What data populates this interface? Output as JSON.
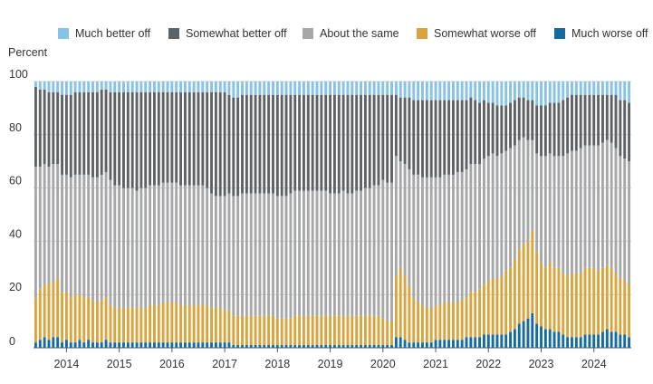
{
  "chart_data": {
    "type": "bar",
    "stacked": true,
    "ylabel": "Percent",
    "ylim": [
      0,
      100
    ],
    "y_ticks": [
      0,
      20,
      40,
      60,
      80,
      100
    ],
    "x_tick_labels": [
      "2014",
      "2015",
      "2016",
      "2017",
      "2018",
      "2019",
      "2020",
      "2021",
      "2022",
      "2023",
      "2024"
    ],
    "x_range": [
      "2013-06",
      "2024-04"
    ],
    "grid": true,
    "legend_position": "top",
    "series": [
      {
        "name": "Much worse off",
        "color": "#156A9E",
        "values": [
          2,
          3,
          4,
          3,
          4,
          4,
          2,
          3,
          2,
          2,
          3,
          2,
          3,
          2,
          2,
          2,
          3,
          2,
          2,
          2,
          2,
          2,
          2,
          2,
          2,
          2,
          2,
          2,
          2,
          2,
          2,
          2,
          2,
          2,
          2,
          2,
          2,
          2,
          2,
          2,
          2,
          2,
          2,
          2,
          2,
          1,
          1,
          1,
          1,
          1,
          1,
          1,
          1,
          1,
          1,
          1,
          1,
          1,
          1,
          1,
          1,
          1,
          1,
          1,
          1,
          1,
          1,
          1,
          1,
          1,
          1,
          1,
          1,
          1,
          1,
          1,
          1,
          1,
          1,
          1,
          1,
          1,
          4,
          4,
          3,
          2,
          2,
          2,
          2,
          2,
          2,
          3,
          3,
          3,
          3,
          3,
          3,
          3,
          4,
          4,
          4,
          4,
          5,
          5,
          5,
          5,
          5,
          5,
          6,
          7,
          9,
          10,
          11,
          13,
          9,
          8,
          7,
          7,
          6,
          6,
          5,
          4,
          4,
          4,
          4,
          5,
          5,
          5,
          5,
          6,
          7,
          6,
          6,
          5,
          5,
          4
        ]
      },
      {
        "name": "Somewhat worse off",
        "color": "#D9A43D",
        "values": [
          17,
          19,
          20,
          21,
          21,
          22,
          19,
          18,
          17,
          18,
          17,
          17,
          16,
          16,
          15,
          16,
          16,
          14,
          13,
          13,
          13,
          13,
          13,
          13,
          13,
          13,
          14,
          14,
          14,
          15,
          15,
          15,
          15,
          14,
          14,
          14,
          14,
          14,
          14,
          14,
          13,
          13,
          13,
          12,
          12,
          11,
          11,
          11,
          11,
          11,
          11,
          11,
          11,
          11,
          11,
          10,
          10,
          10,
          10,
          11,
          11,
          11,
          11,
          11,
          11,
          11,
          11,
          11,
          11,
          11,
          11,
          11,
          11,
          11,
          11,
          11,
          11,
          11,
          11,
          10,
          9,
          9,
          23,
          26,
          24,
          21,
          17,
          15,
          14,
          13,
          13,
          13,
          13,
          14,
          14,
          14,
          14,
          15,
          15,
          17,
          17,
          18,
          19,
          20,
          21,
          21,
          22,
          24,
          24,
          26,
          28,
          29,
          29,
          31,
          27,
          24,
          23,
          25,
          24,
          24,
          23,
          23,
          24,
          24,
          24,
          25,
          25,
          25,
          24,
          24,
          24,
          24,
          22,
          21,
          20,
          20
        ]
      },
      {
        "name": "About the same",
        "color": "#A6A7A9",
        "values": [
          49,
          46,
          45,
          44,
          44,
          43,
          44,
          44,
          45,
          45,
          45,
          46,
          46,
          46,
          47,
          47,
          47,
          47,
          46,
          46,
          45,
          45,
          45,
          44,
          45,
          45,
          45,
          45,
          45,
          45,
          45,
          45,
          45,
          45,
          45,
          45,
          45,
          45,
          45,
          44,
          43,
          42,
          42,
          43,
          44,
          45,
          45,
          46,
          46,
          46,
          46,
          46,
          46,
          46,
          46,
          46,
          46,
          46,
          47,
          47,
          47,
          47,
          47,
          47,
          47,
          47,
          47,
          46,
          46,
          46,
          47,
          46,
          46,
          47,
          47,
          48,
          48,
          49,
          49,
          52,
          52,
          52,
          45,
          40,
          42,
          44,
          46,
          48,
          48,
          49,
          49,
          48,
          48,
          48,
          48,
          48,
          49,
          48,
          48,
          48,
          48,
          47,
          47,
          47,
          47,
          46,
          46,
          45,
          45,
          43,
          41,
          40,
          38,
          34,
          37,
          40,
          42,
          41,
          42,
          42,
          44,
          46,
          46,
          46,
          47,
          46,
          46,
          46,
          47,
          47,
          47,
          47,
          47,
          46,
          46,
          46
        ]
      },
      {
        "name": "Somewhat better off",
        "color": "#5E6166",
        "values": [
          30,
          29,
          28,
          28,
          27,
          27,
          30,
          30,
          31,
          31,
          31,
          31,
          31,
          32,
          32,
          32,
          31,
          33,
          35,
          35,
          36,
          36,
          36,
          37,
          36,
          36,
          35,
          35,
          35,
          34,
          34,
          34,
          34,
          35,
          35,
          35,
          35,
          35,
          35,
          36,
          38,
          39,
          39,
          39,
          37,
          37,
          37,
          37,
          37,
          37,
          37,
          37,
          37,
          37,
          37,
          38,
          38,
          38,
          37,
          36,
          36,
          36,
          36,
          36,
          36,
          36,
          36,
          37,
          37,
          37,
          36,
          37,
          37,
          36,
          36,
          35,
          35,
          34,
          34,
          32,
          33,
          33,
          23,
          24,
          25,
          27,
          28,
          28,
          29,
          29,
          29,
          29,
          29,
          28,
          28,
          28,
          27,
          27,
          26,
          25,
          24,
          23,
          22,
          20,
          19,
          19,
          18,
          17,
          17,
          17,
          16,
          15,
          15,
          15,
          18,
          19,
          19,
          19,
          20,
          20,
          21,
          21,
          21,
          21,
          20,
          19,
          19,
          19,
          19,
          18,
          17,
          18,
          20,
          21,
          22,
          22
        ]
      },
      {
        "name": "Much better off",
        "color": "#87C3E6",
        "values": [
          2,
          3,
          3,
          4,
          4,
          4,
          5,
          5,
          5,
          4,
          4,
          4,
          4,
          4,
          4,
          3,
          3,
          4,
          4,
          4,
          4,
          4,
          4,
          4,
          4,
          4,
          4,
          4,
          4,
          4,
          4,
          4,
          4,
          4,
          4,
          4,
          4,
          4,
          4,
          4,
          4,
          4,
          4,
          4,
          5,
          6,
          6,
          5,
          5,
          5,
          5,
          5,
          5,
          5,
          5,
          5,
          5,
          5,
          5,
          5,
          5,
          5,
          5,
          5,
          5,
          5,
          5,
          5,
          5,
          5,
          5,
          5,
          5,
          5,
          5,
          5,
          5,
          5,
          5,
          5,
          5,
          5,
          5,
          6,
          6,
          6,
          7,
          7,
          7,
          7,
          7,
          7,
          7,
          7,
          7,
          7,
          7,
          7,
          7,
          6,
          7,
          8,
          7,
          8,
          8,
          9,
          9,
          9,
          8,
          7,
          6,
          6,
          7,
          7,
          9,
          9,
          9,
          8,
          8,
          8,
          7,
          6,
          5,
          5,
          5,
          5,
          5,
          5,
          5,
          5,
          5,
          5,
          5,
          7,
          7,
          8
        ]
      }
    ]
  }
}
